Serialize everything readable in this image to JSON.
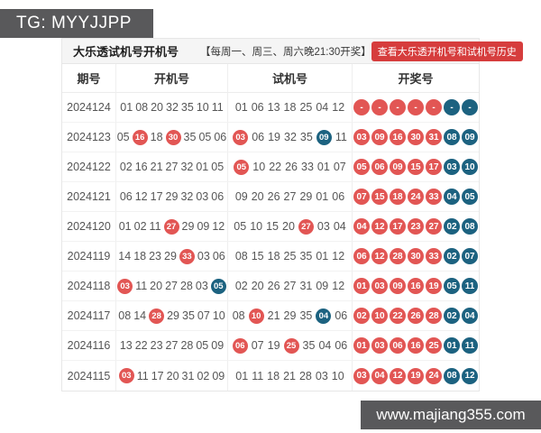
{
  "page": {
    "tg_badge": "TG: MYYJJPP",
    "watermark": "www.majiang355.com"
  },
  "panel": {
    "title": "大乐透试机号开机号",
    "schedule": "【每周一、周三、周六晚21:30开奖】",
    "history_button": "查看大乐透开机号和试机号历史"
  },
  "colors": {
    "red_ball": "#e25654",
    "blue_ball": "#1c6280",
    "button_red": "#d63d3d",
    "bar_gray": "#59595b"
  },
  "table": {
    "headers": [
      "期号",
      "开机号",
      "试机号",
      "开奖号"
    ],
    "rows": [
      {
        "period": "2024124",
        "open": [
          {
            "v": "01"
          },
          {
            "v": "08"
          },
          {
            "v": "20"
          },
          {
            "v": "32"
          },
          {
            "v": "35"
          },
          {
            "v": "10"
          },
          {
            "v": "11"
          }
        ],
        "test": [
          {
            "v": "01"
          },
          {
            "v": "06"
          },
          {
            "v": "13"
          },
          {
            "v": "18"
          },
          {
            "v": "25"
          },
          {
            "v": "04"
          },
          {
            "v": "12"
          }
        ],
        "win": [
          {
            "v": "-",
            "h": "red"
          },
          {
            "v": "-",
            "h": "red"
          },
          {
            "v": "-",
            "h": "red"
          },
          {
            "v": "-",
            "h": "red"
          },
          {
            "v": "-",
            "h": "red"
          },
          {
            "v": "-",
            "h": "blue"
          },
          {
            "v": "-",
            "h": "blue"
          }
        ]
      },
      {
        "period": "2024123",
        "open": [
          {
            "v": "05"
          },
          {
            "v": "16",
            "h": "red"
          },
          {
            "v": "18"
          },
          {
            "v": "30",
            "h": "red"
          },
          {
            "v": "35"
          },
          {
            "v": "05"
          },
          {
            "v": "06"
          }
        ],
        "test": [
          {
            "v": "03",
            "h": "red"
          },
          {
            "v": "06"
          },
          {
            "v": "19"
          },
          {
            "v": "32"
          },
          {
            "v": "35"
          },
          {
            "v": "09",
            "h": "blue"
          },
          {
            "v": "11"
          }
        ],
        "win": [
          {
            "v": "03",
            "h": "red"
          },
          {
            "v": "09",
            "h": "red"
          },
          {
            "v": "16",
            "h": "red"
          },
          {
            "v": "30",
            "h": "red"
          },
          {
            "v": "31",
            "h": "red"
          },
          {
            "v": "08",
            "h": "blue"
          },
          {
            "v": "09",
            "h": "blue"
          }
        ]
      },
      {
        "period": "2024122",
        "open": [
          {
            "v": "02"
          },
          {
            "v": "16"
          },
          {
            "v": "21"
          },
          {
            "v": "27"
          },
          {
            "v": "32"
          },
          {
            "v": "01"
          },
          {
            "v": "05"
          }
        ],
        "test": [
          {
            "v": "05",
            "h": "red"
          },
          {
            "v": "10"
          },
          {
            "v": "22"
          },
          {
            "v": "26"
          },
          {
            "v": "33"
          },
          {
            "v": "01"
          },
          {
            "v": "07"
          }
        ],
        "win": [
          {
            "v": "05",
            "h": "red"
          },
          {
            "v": "06",
            "h": "red"
          },
          {
            "v": "09",
            "h": "red"
          },
          {
            "v": "15",
            "h": "red"
          },
          {
            "v": "17",
            "h": "red"
          },
          {
            "v": "03",
            "h": "blue"
          },
          {
            "v": "10",
            "h": "blue"
          }
        ]
      },
      {
        "period": "2024121",
        "open": [
          {
            "v": "06"
          },
          {
            "v": "12"
          },
          {
            "v": "17"
          },
          {
            "v": "29"
          },
          {
            "v": "32"
          },
          {
            "v": "03"
          },
          {
            "v": "06"
          }
        ],
        "test": [
          {
            "v": "09"
          },
          {
            "v": "20"
          },
          {
            "v": "26"
          },
          {
            "v": "27"
          },
          {
            "v": "29"
          },
          {
            "v": "01"
          },
          {
            "v": "06"
          }
        ],
        "win": [
          {
            "v": "07",
            "h": "red"
          },
          {
            "v": "15",
            "h": "red"
          },
          {
            "v": "18",
            "h": "red"
          },
          {
            "v": "24",
            "h": "red"
          },
          {
            "v": "33",
            "h": "red"
          },
          {
            "v": "04",
            "h": "blue"
          },
          {
            "v": "05",
            "h": "blue"
          }
        ]
      },
      {
        "period": "2024120",
        "open": [
          {
            "v": "01"
          },
          {
            "v": "02"
          },
          {
            "v": "11"
          },
          {
            "v": "27",
            "h": "red"
          },
          {
            "v": "29"
          },
          {
            "v": "09"
          },
          {
            "v": "12"
          }
        ],
        "test": [
          {
            "v": "05"
          },
          {
            "v": "10"
          },
          {
            "v": "15"
          },
          {
            "v": "20"
          },
          {
            "v": "27",
            "h": "red"
          },
          {
            "v": "03"
          },
          {
            "v": "04"
          }
        ],
        "win": [
          {
            "v": "04",
            "h": "red"
          },
          {
            "v": "12",
            "h": "red"
          },
          {
            "v": "17",
            "h": "red"
          },
          {
            "v": "23",
            "h": "red"
          },
          {
            "v": "27",
            "h": "red"
          },
          {
            "v": "02",
            "h": "blue"
          },
          {
            "v": "08",
            "h": "blue"
          }
        ]
      },
      {
        "period": "2024119",
        "open": [
          {
            "v": "14"
          },
          {
            "v": "18"
          },
          {
            "v": "23"
          },
          {
            "v": "29"
          },
          {
            "v": "33",
            "h": "red"
          },
          {
            "v": "03"
          },
          {
            "v": "06"
          }
        ],
        "test": [
          {
            "v": "08"
          },
          {
            "v": "15"
          },
          {
            "v": "18"
          },
          {
            "v": "25"
          },
          {
            "v": "35"
          },
          {
            "v": "01"
          },
          {
            "v": "12"
          }
        ],
        "win": [
          {
            "v": "06",
            "h": "red"
          },
          {
            "v": "12",
            "h": "red"
          },
          {
            "v": "28",
            "h": "red"
          },
          {
            "v": "30",
            "h": "red"
          },
          {
            "v": "33",
            "h": "red"
          },
          {
            "v": "02",
            "h": "blue"
          },
          {
            "v": "07",
            "h": "blue"
          }
        ]
      },
      {
        "period": "2024118",
        "open": [
          {
            "v": "03",
            "h": "red"
          },
          {
            "v": "11"
          },
          {
            "v": "20"
          },
          {
            "v": "27"
          },
          {
            "v": "28"
          },
          {
            "v": "03"
          },
          {
            "v": "05",
            "h": "blue"
          }
        ],
        "test": [
          {
            "v": "02"
          },
          {
            "v": "20"
          },
          {
            "v": "26"
          },
          {
            "v": "27"
          },
          {
            "v": "31"
          },
          {
            "v": "09"
          },
          {
            "v": "12"
          }
        ],
        "win": [
          {
            "v": "01",
            "h": "red"
          },
          {
            "v": "03",
            "h": "red"
          },
          {
            "v": "09",
            "h": "red"
          },
          {
            "v": "16",
            "h": "red"
          },
          {
            "v": "19",
            "h": "red"
          },
          {
            "v": "05",
            "h": "blue"
          },
          {
            "v": "11",
            "h": "blue"
          }
        ]
      },
      {
        "period": "2024117",
        "open": [
          {
            "v": "08"
          },
          {
            "v": "14"
          },
          {
            "v": "28",
            "h": "red"
          },
          {
            "v": "29"
          },
          {
            "v": "35"
          },
          {
            "v": "07"
          },
          {
            "v": "10"
          }
        ],
        "test": [
          {
            "v": "08"
          },
          {
            "v": "10",
            "h": "red"
          },
          {
            "v": "21"
          },
          {
            "v": "29"
          },
          {
            "v": "35"
          },
          {
            "v": "04",
            "h": "blue"
          },
          {
            "v": "06"
          }
        ],
        "win": [
          {
            "v": "02",
            "h": "red"
          },
          {
            "v": "10",
            "h": "red"
          },
          {
            "v": "22",
            "h": "red"
          },
          {
            "v": "26",
            "h": "red"
          },
          {
            "v": "28",
            "h": "red"
          },
          {
            "v": "02",
            "h": "blue"
          },
          {
            "v": "04",
            "h": "blue"
          }
        ]
      },
      {
        "period": "2024116",
        "open": [
          {
            "v": "13"
          },
          {
            "v": "22"
          },
          {
            "v": "23"
          },
          {
            "v": "27"
          },
          {
            "v": "28"
          },
          {
            "v": "05"
          },
          {
            "v": "09"
          }
        ],
        "test": [
          {
            "v": "06",
            "h": "red"
          },
          {
            "v": "07"
          },
          {
            "v": "19"
          },
          {
            "v": "25",
            "h": "red"
          },
          {
            "v": "35"
          },
          {
            "v": "04"
          },
          {
            "v": "06"
          }
        ],
        "win": [
          {
            "v": "01",
            "h": "red"
          },
          {
            "v": "03",
            "h": "red"
          },
          {
            "v": "06",
            "h": "red"
          },
          {
            "v": "16",
            "h": "red"
          },
          {
            "v": "25",
            "h": "red"
          },
          {
            "v": "01",
            "h": "blue"
          },
          {
            "v": "11",
            "h": "blue"
          }
        ]
      },
      {
        "period": "2024115",
        "open": [
          {
            "v": "03",
            "h": "red"
          },
          {
            "v": "11"
          },
          {
            "v": "17"
          },
          {
            "v": "20"
          },
          {
            "v": "31"
          },
          {
            "v": "02"
          },
          {
            "v": "09"
          }
        ],
        "test": [
          {
            "v": "01"
          },
          {
            "v": "11"
          },
          {
            "v": "18"
          },
          {
            "v": "21"
          },
          {
            "v": "28"
          },
          {
            "v": "03"
          },
          {
            "v": "10"
          }
        ],
        "win": [
          {
            "v": "03",
            "h": "red"
          },
          {
            "v": "04",
            "h": "red"
          },
          {
            "v": "12",
            "h": "red"
          },
          {
            "v": "19",
            "h": "red"
          },
          {
            "v": "24",
            "h": "red"
          },
          {
            "v": "08",
            "h": "blue"
          },
          {
            "v": "12",
            "h": "blue"
          }
        ]
      }
    ]
  }
}
